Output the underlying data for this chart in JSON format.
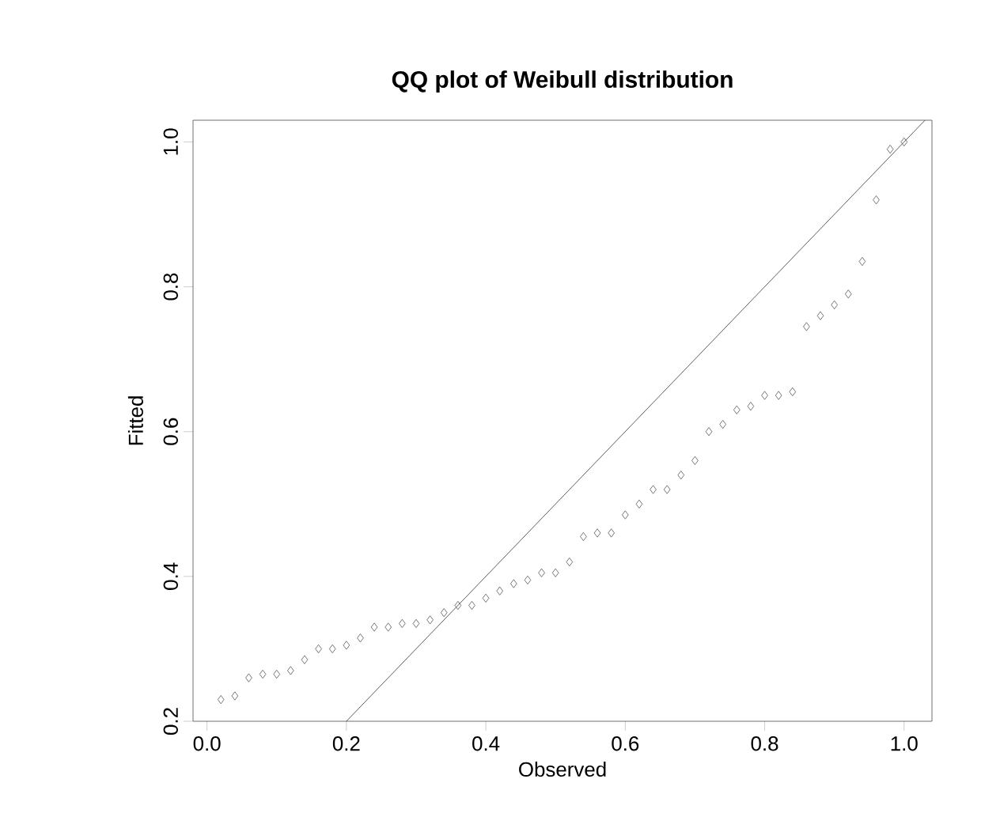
{
  "chart_data": {
    "type": "scatter",
    "title": "QQ plot of Weibull distribution",
    "xlabel": "Observed",
    "ylabel": "Fitted",
    "xlim": [
      -0.02,
      1.04
    ],
    "ylim": [
      0.2,
      1.03
    ],
    "xticks": [
      {
        "value": 0,
        "label": "0.0"
      },
      0.2,
      0.4,
      0.6,
      0.8,
      {
        "value": 1,
        "label": "1.0"
      }
    ],
    "yticks": [
      0.2,
      0.4,
      0.6,
      0.8,
      {
        "value": 1,
        "label": "1.0"
      }
    ],
    "marker": "diamond",
    "grid": false,
    "series": [
      {
        "color": "#555555",
        "x": [
          0.02,
          0.04,
          0.06,
          0.08,
          0.1,
          0.12,
          0.14,
          0.16,
          0.18,
          0.2,
          0.22,
          0.24,
          0.26,
          0.28,
          0.3,
          0.32,
          0.34,
          0.36,
          0.38,
          0.4,
          0.42,
          0.44,
          0.46,
          0.48,
          0.5,
          0.52,
          0.54,
          0.56,
          0.58,
          0.6,
          0.62,
          0.64,
          0.66,
          0.68,
          0.7,
          0.72,
          0.74,
          0.76,
          0.78,
          0.8,
          0.82,
          0.84,
          0.86,
          0.88,
          0.9,
          0.92,
          0.94,
          0.96,
          0.98,
          1.0
        ],
        "values": [
          0.23,
          0.235,
          0.26,
          0.265,
          0.265,
          0.27,
          0.285,
          0.3,
          0.3,
          0.305,
          0.315,
          0.33,
          0.33,
          0.335,
          0.335,
          0.34,
          0.35,
          0.36,
          0.36,
          0.37,
          0.38,
          0.39,
          0.395,
          0.405,
          0.405,
          0.42,
          0.455,
          0.46,
          0.46,
          0.485,
          0.5,
          0.52,
          0.52,
          0.54,
          0.56,
          0.6,
          0.61,
          0.63,
          0.635,
          0.65,
          0.65,
          0.655,
          0.745,
          0.76,
          0.775,
          0.79,
          0.835,
          0.92,
          0.99,
          1.0
        ]
      },
      {
        "type": "line",
        "marker": "none",
        "color": "#333333",
        "x": [
          0.2,
          1.03
        ],
        "values": [
          0.2,
          1.03
        ]
      }
    ]
  }
}
